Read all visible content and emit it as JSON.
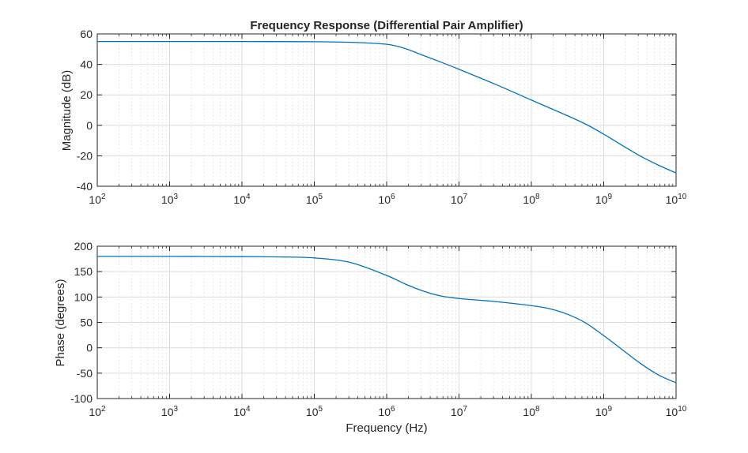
{
  "chart_data": [
    {
      "type": "line",
      "title": "Frequency Response (Differential Pair Amplifier)",
      "xlabel": "",
      "ylabel": "Magnitude (dB)",
      "xscale": "log",
      "xlim_exp": [
        2,
        10
      ],
      "ylim": [
        -40,
        60
      ],
      "yticks": [
        -40,
        -20,
        0,
        20,
        40,
        60
      ],
      "xtick_exponents": [
        2,
        3,
        4,
        5,
        6,
        7,
        8,
        9,
        10
      ],
      "grid": true,
      "series": [
        {
          "name": "Magnitude",
          "color": "#0072bd",
          "log10_freq": [
            2,
            3,
            4,
            5,
            5.5,
            6,
            6.25,
            6.5,
            6.75,
            7,
            7.5,
            8,
            8.5,
            8.75,
            9,
            9.25,
            9.5,
            9.75,
            10
          ],
          "values": [
            55,
            55,
            55,
            54.9,
            54.5,
            53.2,
            50.5,
            46,
            41.5,
            36.8,
            27,
            16.6,
            6.3,
            0.8,
            -5.8,
            -13,
            -20,
            -26,
            -31.3
          ]
        }
      ]
    },
    {
      "type": "line",
      "title": "",
      "xlabel": "Frequency (Hz)",
      "ylabel": "Phase (degrees)",
      "xscale": "log",
      "xlim_exp": [
        2,
        10
      ],
      "ylim": [
        -100,
        200
      ],
      "yticks": [
        -100,
        -50,
        0,
        50,
        100,
        150,
        200
      ],
      "xtick_exponents": [
        2,
        3,
        4,
        5,
        6,
        7,
        8,
        9,
        10
      ],
      "grid": true,
      "series": [
        {
          "name": "Phase",
          "color": "#0072bd",
          "log10_freq": [
            2,
            3,
            4,
            4.5,
            5,
            5.5,
            6,
            6.25,
            6.5,
            6.75,
            7,
            7.5,
            8,
            8.25,
            8.5,
            8.75,
            9,
            9.25,
            9.5,
            9.75,
            10
          ],
          "values": [
            180,
            180,
            179.5,
            179,
            177,
            168,
            142.5,
            126,
            112,
            102,
            97,
            91,
            83,
            77,
            66,
            49,
            24,
            -3,
            -30,
            -53,
            -69
          ]
        }
      ]
    }
  ]
}
